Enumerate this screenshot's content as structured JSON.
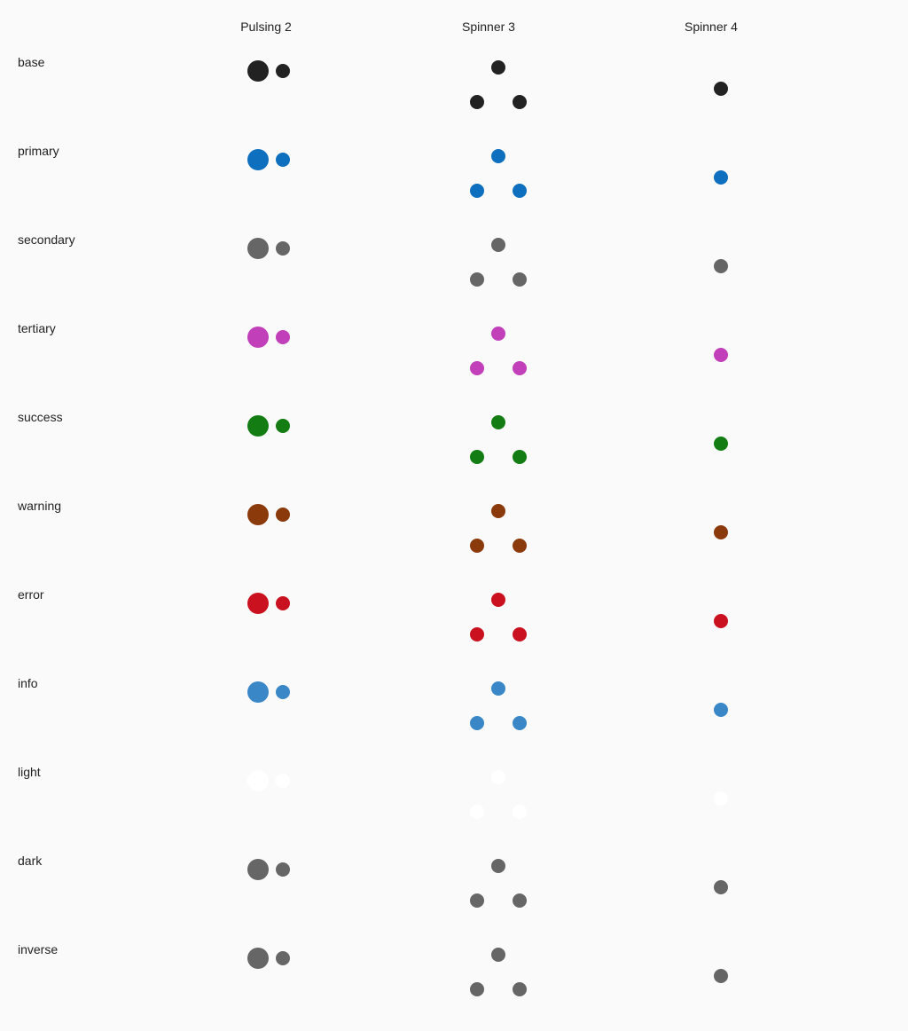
{
  "headers": {
    "pulsing": "Pulsing 2",
    "spinner3": "Spinner 3",
    "spinner4": "Spinner 4"
  },
  "rows": [
    {
      "label": "base",
      "color": "#222222"
    },
    {
      "label": "primary",
      "color": "#0f6fbf"
    },
    {
      "label": "secondary",
      "color": "#666666"
    },
    {
      "label": "tertiary",
      "color": "#c13fb8"
    },
    {
      "label": "success",
      "color": "#137d13"
    },
    {
      "label": "warning",
      "color": "#8a3a0b"
    },
    {
      "label": "error",
      "color": "#c9111f"
    },
    {
      "label": "info",
      "color": "#3a87c8"
    },
    {
      "label": "light",
      "color": "#ffffff"
    },
    {
      "label": "dark",
      "color": "#666666"
    },
    {
      "label": "inverse",
      "color": "#666666"
    }
  ]
}
